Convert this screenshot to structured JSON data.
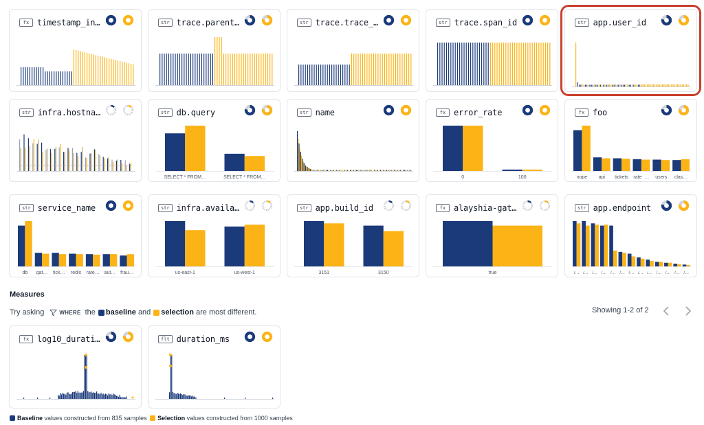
{
  "colors": {
    "baseline": "#1b3a7a",
    "selection": "#fcb316",
    "accent_outline": "#c9402c"
  },
  "cards": [
    {
      "type": "fx",
      "name": "timestamp_in…",
      "donuts": "solid",
      "chart": "timeseries-a",
      "selected": false
    },
    {
      "type": "str",
      "name": "trace.parent…",
      "donuts": "partial",
      "chart": "timeseries-b",
      "selected": false
    },
    {
      "type": "str",
      "name": "trace.trace_…",
      "donuts": "solid",
      "chart": "timeseries-c",
      "selected": false
    },
    {
      "type": "str",
      "name": "trace.span_id",
      "donuts": "solid",
      "chart": "timeseries-d",
      "selected": false
    },
    {
      "type": "str",
      "name": "app.user_id",
      "donuts": "partial",
      "chart": "longtail",
      "selected": true
    },
    {
      "type": "str",
      "name": "infra.hostna…",
      "donuts": "dashed",
      "chart": "host",
      "selected": false
    },
    {
      "type": "str",
      "name": "db.query",
      "donuts": "partial",
      "chart": "bars",
      "selected": false,
      "bars": {
        "labels": [
          "SELECT * FROM…",
          "SELECT * FROM…"
        ],
        "baseline": [
          0.83,
          0.38
        ],
        "selection": [
          1.0,
          0.33
        ]
      }
    },
    {
      "type": "str",
      "name": "name",
      "donuts": "solid",
      "chart": "namehist",
      "selected": false
    },
    {
      "type": "fx",
      "name": "error_rate",
      "donuts": "solid",
      "chart": "bars",
      "selected": false,
      "bars": {
        "labels": [
          "0",
          "100"
        ],
        "baseline": [
          1.0,
          0.03
        ],
        "selection": [
          1.0,
          0.03
        ]
      }
    },
    {
      "type": "fx",
      "name": "foo",
      "donuts": "partial",
      "chart": "bars",
      "selected": false,
      "bars": {
        "labels": [
          "nope",
          "api",
          "tickets",
          "rate_…",
          "users",
          "clas…"
        ],
        "baseline": [
          0.9,
          0.3,
          0.28,
          0.26,
          0.25,
          0.24
        ],
        "selection": [
          1.0,
          0.28,
          0.27,
          0.25,
          0.24,
          0.26
        ]
      }
    },
    {
      "type": "str",
      "name": "service_name",
      "donuts": "solid",
      "chart": "bars",
      "selected": false,
      "bars": {
        "labels": [
          "db",
          "gat…",
          "tick…",
          "redis",
          "rate…",
          "aut…",
          "frau…"
        ],
        "baseline": [
          0.9,
          0.3,
          0.3,
          0.28,
          0.27,
          0.27,
          0.24
        ],
        "selection": [
          1.0,
          0.28,
          0.27,
          0.27,
          0.26,
          0.27,
          0.27
        ]
      }
    },
    {
      "type": "str",
      "name": "infra.availa…",
      "donuts": "dashed",
      "chart": "bars",
      "selected": false,
      "bars": {
        "labels": [
          "us-east-1",
          "us-west-1"
        ],
        "baseline": [
          1.0,
          0.88
        ],
        "selection": [
          0.8,
          0.92
        ]
      }
    },
    {
      "type": "str",
      "name": "app.build_id",
      "donuts": "dashed",
      "chart": "bars",
      "selected": false,
      "bars": {
        "labels": [
          "3151",
          "3150"
        ],
        "baseline": [
          1.0,
          0.9
        ],
        "selection": [
          0.95,
          0.78
        ]
      }
    },
    {
      "type": "fx",
      "name": "alayshia-gat…",
      "donuts": "dashed",
      "chart": "bars",
      "selected": false,
      "bars": {
        "labels": [
          "true"
        ],
        "baseline": [
          1.0
        ],
        "selection": [
          0.9
        ]
      }
    },
    {
      "type": "str",
      "name": "app.endpoint",
      "donuts": "partial",
      "chart": "bars",
      "selected": false,
      "bars": {
        "labels": [
          "/…",
          "/…",
          "/…",
          "/…",
          "/…",
          "/…",
          "/…",
          "/…",
          "/…",
          "/…",
          "/…",
          "/…",
          "/…"
        ],
        "baseline": [
          1.0,
          1.0,
          0.95,
          0.9,
          0.9,
          0.32,
          0.28,
          0.2,
          0.15,
          0.1,
          0.08,
          0.06,
          0.04
        ],
        "selection": [
          0.95,
          0.9,
          0.92,
          0.92,
          0.35,
          0.3,
          0.22,
          0.17,
          0.12,
          0.1,
          0.08,
          0.05,
          0.03
        ]
      }
    },
    {
      "type": "fx",
      "name": "log10_durati…",
      "donuts": "partial",
      "chart": "spike-mid",
      "selected": false
    },
    {
      "type": "flt",
      "name": "duration_ms",
      "donuts": "solid",
      "chart": "spike-left",
      "selected": false
    }
  ],
  "measures": {
    "title": "Measures",
    "try_prefix": "Try asking",
    "where_label": "WHERE",
    "try_mid": "the",
    "baseline_label": "baseline",
    "and_label": "and",
    "selection_label": "selection",
    "try_suffix": "are most different.",
    "showing": "Showing 1-2 of 2"
  },
  "footer": {
    "baseline_label": "Baseline",
    "baseline_text": "values constructed from 835 samples",
    "selection_label": "Selection",
    "selection_text": "values constructed from 1000 samples"
  }
}
